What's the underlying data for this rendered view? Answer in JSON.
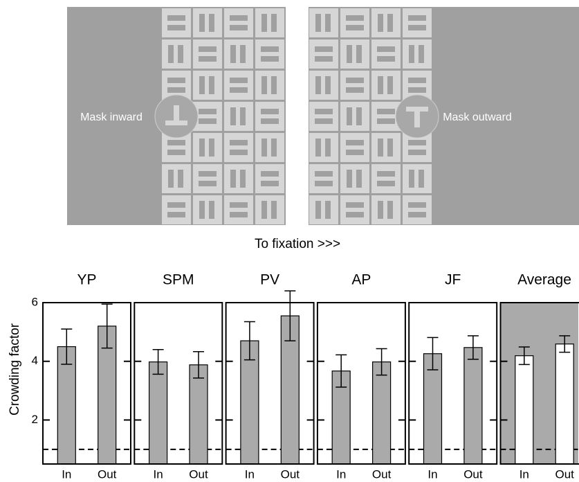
{
  "illustration": {
    "left_label": "Mask inward",
    "right_label": "Mask outward",
    "caption": "To fixation >>>"
  },
  "chart_data": [
    {
      "type": "bar",
      "title": "YP",
      "ylabel": "Crowding factor",
      "categories": [
        "In",
        "Out"
      ],
      "values": [
        4.5,
        5.2
      ],
      "errors": [
        0.6,
        0.75
      ],
      "color": "#aaaaaa",
      "background": "#ffffff",
      "ylim": [
        0.5,
        6
      ],
      "yticks": [
        2,
        4,
        6
      ],
      "reference_line": 1
    },
    {
      "type": "bar",
      "title": "SPM",
      "categories": [
        "In",
        "Out"
      ],
      "values": [
        3.98,
        3.88
      ],
      "errors": [
        0.42,
        0.45
      ],
      "color": "#aaaaaa",
      "background": "#ffffff",
      "ylim": [
        0.5,
        6
      ],
      "yticks": [
        2,
        4,
        6
      ],
      "reference_line": 1
    },
    {
      "type": "bar",
      "title": "PV",
      "categories": [
        "In",
        "Out"
      ],
      "values": [
        4.7,
        5.55
      ],
      "errors": [
        0.65,
        0.85
      ],
      "color": "#aaaaaa",
      "background": "#ffffff",
      "ylim": [
        0.5,
        6
      ],
      "yticks": [
        2,
        4,
        6
      ],
      "reference_line": 1
    },
    {
      "type": "bar",
      "title": "AP",
      "categories": [
        "In",
        "Out"
      ],
      "values": [
        3.67,
        3.98
      ],
      "errors": [
        0.55,
        0.45
      ],
      "color": "#aaaaaa",
      "background": "#ffffff",
      "ylim": [
        0.5,
        6
      ],
      "yticks": [
        2,
        4,
        6
      ],
      "reference_line": 1
    },
    {
      "type": "bar",
      "title": "JF",
      "categories": [
        "In",
        "Out"
      ],
      "values": [
        4.26,
        4.47
      ],
      "errors": [
        0.55,
        0.4
      ],
      "color": "#aaaaaa",
      "background": "#ffffff",
      "ylim": [
        0.5,
        6
      ],
      "yticks": [
        2,
        4,
        6
      ],
      "reference_line": 1
    },
    {
      "type": "bar",
      "title": "Average",
      "categories": [
        "In",
        "Out"
      ],
      "values": [
        4.19,
        4.59
      ],
      "errors": [
        0.3,
        0.28
      ],
      "color": "#ffffff",
      "background": "#aaaaaa",
      "ylim": [
        0.5,
        6
      ],
      "yticks": [
        2,
        4,
        6
      ],
      "reference_line": 1
    }
  ]
}
